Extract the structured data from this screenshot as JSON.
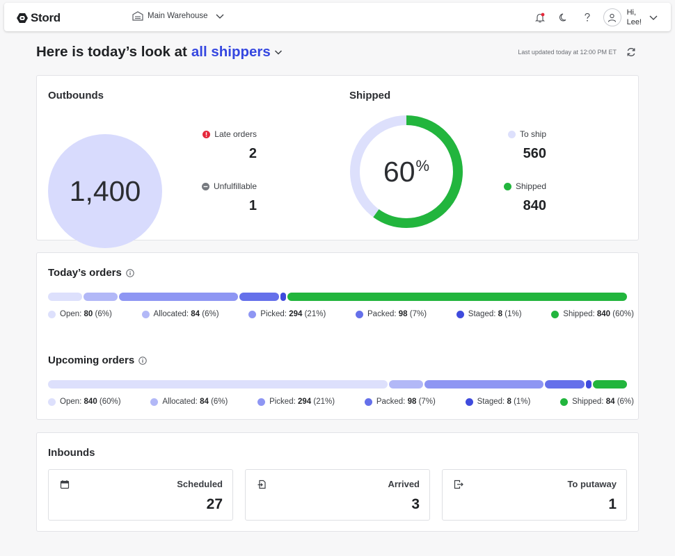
{
  "app": {
    "logo_text": "Stord"
  },
  "topbar": {
    "warehouse": "Main Warehouse",
    "greeting_line1": "Hi,",
    "greeting_line2": "Lee!",
    "icons": [
      "bell-alert-icon",
      "moon-icon",
      "help-icon",
      "user-icon",
      "chevron-down-icon"
    ]
  },
  "header": {
    "title_prefix": "Here is today’s look at",
    "title_accent": "all shippers",
    "last_updated": "Last updated today at 12:00 PM ET"
  },
  "colors": {
    "accent": "#3547e0",
    "open": "#dde0fc",
    "allocated": "#b2b8f7",
    "picked": "#8e96f3",
    "packed": "#6570ea",
    "staged": "#3f4bdd",
    "shipped": "#22b53d",
    "late": "#e5283b",
    "unfulfillable": "#76797f"
  },
  "outbounds": {
    "title": "Outbounds",
    "total": "1,400",
    "late_label": "Late orders",
    "late_value": "2",
    "unfulfillable_label": "Unfulfillable",
    "unfulfillable_value": "1"
  },
  "shipped": {
    "title": "Shipped",
    "percent_number": "60",
    "percent_sign": "%",
    "fraction": 0.6,
    "to_ship_label": "To ship",
    "to_ship_value": "560",
    "shipped_label": "Shipped",
    "shipped_value": "840"
  },
  "todays_orders": {
    "title": "Today’s orders",
    "segments": [
      {
        "label": "Open:",
        "value": "80",
        "pct": "(6%)",
        "weight": 6,
        "color": "open"
      },
      {
        "label": "Allocated:",
        "value": "84",
        "pct": "(6%)",
        "weight": 6,
        "color": "allocated"
      },
      {
        "label": "Picked:",
        "value": "294",
        "pct": "(21%)",
        "weight": 21,
        "color": "picked"
      },
      {
        "label": "Packed:",
        "value": "98",
        "pct": "(7%)",
        "weight": 7,
        "color": "packed"
      },
      {
        "label": "Staged:",
        "value": "8",
        "pct": "(1%)",
        "weight": 1,
        "color": "staged"
      },
      {
        "label": "Shipped:",
        "value": "840",
        "pct": "(60%)",
        "weight": 60,
        "color": "shipped"
      }
    ]
  },
  "upcoming_orders": {
    "title": "Upcoming orders",
    "segments": [
      {
        "label": "Open:",
        "value": "840",
        "pct": "(60%)",
        "weight": 60,
        "color": "open"
      },
      {
        "label": "Allocated:",
        "value": "84",
        "pct": "(6%)",
        "weight": 6,
        "color": "allocated"
      },
      {
        "label": "Picked:",
        "value": "294",
        "pct": "(21%)",
        "weight": 21,
        "color": "picked"
      },
      {
        "label": "Packed:",
        "value": "98",
        "pct": "(7%)",
        "weight": 7,
        "color": "packed"
      },
      {
        "label": "Staged:",
        "value": "8",
        "pct": "(1%)",
        "weight": 1,
        "color": "staged"
      },
      {
        "label": "Shipped:",
        "value": "84",
        "pct": "(6%)",
        "weight": 6,
        "color": "shipped"
      }
    ]
  },
  "inbounds": {
    "title": "Inbounds",
    "items": [
      {
        "label": "Scheduled",
        "value": "27",
        "icon": "calendar-icon"
      },
      {
        "label": "Arrived",
        "value": "3",
        "icon": "document-arrive-icon"
      },
      {
        "label": "To putaway",
        "value": "1",
        "icon": "putaway-icon"
      }
    ]
  }
}
